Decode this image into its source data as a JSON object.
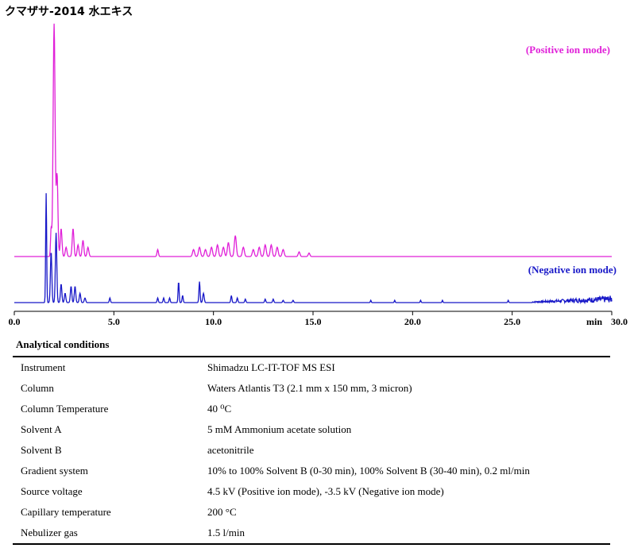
{
  "chart_data": {
    "type": "line",
    "title": "クマザサ-2014 水エキス",
    "xlabel": "min",
    "xlim": [
      0,
      30
    ],
    "x_ticks": [
      "0.0",
      "5.0",
      "10.0",
      "15.0",
      "20.0",
      "25.0",
      "30.0"
    ],
    "grid": false,
    "series": [
      {
        "name": "(Positive ion mode)",
        "color": "#e020d8",
        "baseline": 0.06,
        "peaks": [
          [
            1.85,
            0.12,
            0.04
          ],
          [
            2.0,
            1.0,
            0.07
          ],
          [
            2.15,
            0.35,
            0.06
          ],
          [
            2.35,
            0.12,
            0.06
          ],
          [
            2.6,
            0.04,
            0.06
          ],
          [
            2.95,
            0.12,
            0.06
          ],
          [
            3.2,
            0.05,
            0.06
          ],
          [
            3.45,
            0.07,
            0.06
          ],
          [
            3.7,
            0.04,
            0.06
          ],
          [
            7.2,
            0.03,
            0.05
          ],
          [
            9.0,
            0.03,
            0.07
          ],
          [
            9.3,
            0.04,
            0.07
          ],
          [
            9.6,
            0.03,
            0.07
          ],
          [
            9.9,
            0.04,
            0.07
          ],
          [
            10.2,
            0.05,
            0.07
          ],
          [
            10.5,
            0.04,
            0.07
          ],
          [
            10.75,
            0.06,
            0.07
          ],
          [
            11.1,
            0.09,
            0.07
          ],
          [
            11.5,
            0.04,
            0.07
          ],
          [
            12.0,
            0.03,
            0.07
          ],
          [
            12.3,
            0.04,
            0.07
          ],
          [
            12.6,
            0.05,
            0.07
          ],
          [
            12.9,
            0.05,
            0.07
          ],
          [
            13.2,
            0.04,
            0.07
          ],
          [
            13.5,
            0.03,
            0.07
          ],
          [
            14.3,
            0.02,
            0.06
          ],
          [
            14.8,
            0.015,
            0.06
          ]
        ],
        "end": 15.1
      },
      {
        "name": "(Negative ion mode)",
        "color": "#1818c8",
        "baseline": 0.0,
        "peaks": [
          [
            1.6,
            0.47,
            0.035
          ],
          [
            1.85,
            0.22,
            0.05
          ],
          [
            2.1,
            0.3,
            0.05
          ],
          [
            2.35,
            0.08,
            0.05
          ],
          [
            2.55,
            0.04,
            0.05
          ],
          [
            2.85,
            0.07,
            0.05
          ],
          [
            3.05,
            0.07,
            0.05
          ],
          [
            3.3,
            0.04,
            0.05
          ],
          [
            3.55,
            0.02,
            0.05
          ],
          [
            4.8,
            0.02,
            0.04
          ],
          [
            7.2,
            0.02,
            0.04
          ],
          [
            7.5,
            0.02,
            0.04
          ],
          [
            7.8,
            0.02,
            0.04
          ],
          [
            8.25,
            0.09,
            0.035
          ],
          [
            8.45,
            0.03,
            0.04
          ],
          [
            9.3,
            0.09,
            0.04
          ],
          [
            9.5,
            0.04,
            0.05
          ],
          [
            10.9,
            0.03,
            0.04
          ],
          [
            11.2,
            0.02,
            0.04
          ],
          [
            11.6,
            0.015,
            0.04
          ],
          [
            12.6,
            0.015,
            0.04
          ],
          [
            13.0,
            0.015,
            0.04
          ],
          [
            13.5,
            0.01,
            0.04
          ],
          [
            14.0,
            0.01,
            0.04
          ],
          [
            17.9,
            0.01,
            0.03
          ],
          [
            19.1,
            0.01,
            0.03
          ],
          [
            20.4,
            0.01,
            0.03
          ],
          [
            21.5,
            0.01,
            0.03
          ],
          [
            24.8,
            0.01,
            0.03
          ]
        ],
        "noise_start": 26.0,
        "noise_end": 30.0
      }
    ]
  },
  "conditions": {
    "heading": "Analytical conditions",
    "rows": [
      {
        "param": "Instrument",
        "value": "Shimadzu LC-IT-TOF MS ESI"
      },
      {
        "param": "Column",
        "value": "Waters Atlantis T3 (2.1 mm x 150 mm, 3 micron)"
      },
      {
        "param": "Column Temperature",
        "value": "40 ⁰C"
      },
      {
        "param": "Solvent A",
        "value": "5 mM Ammonium acetate solution"
      },
      {
        "param": "Solvent B",
        "value": "acetonitrile"
      },
      {
        "param": "Gradient system",
        "value": "10% to 100% Solvent B (0-30 min), 100% Solvent B (30-40 min), 0.2 ml/min"
      },
      {
        "param": "Source voltage",
        "value": "4.5 kV (Positive ion mode), -3.5 kV (Negative ion mode)"
      },
      {
        "param": "Capillary temperature",
        "value": "200 °C"
      },
      {
        "param": "Nebulizer gas",
        "value": "1.5 l/min"
      }
    ]
  }
}
